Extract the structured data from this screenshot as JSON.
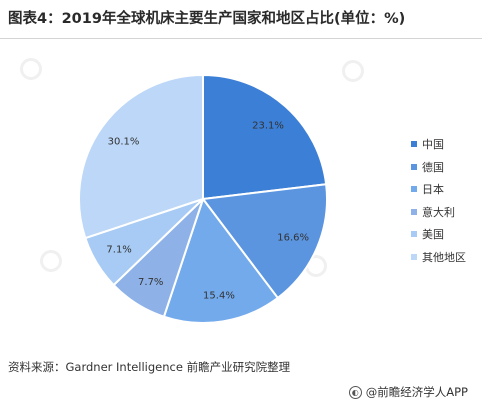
{
  "title": "图表4：2019年全球机床主要生产国家和地区占比(单位：%)",
  "source": "资料来源：Gardner Intelligence 前瞻产业研究院整理",
  "brand": "@前瞻经济学人APP",
  "watermark": "前瞻产业研究院",
  "colors": [
    "#3c7fd6",
    "#5b95e0",
    "#72aaec",
    "#8eb2e8",
    "#a7cbf4",
    "#bcd7f7"
  ],
  "chart_data": {
    "type": "pie",
    "categories": [
      "中国",
      "德国",
      "日本",
      "意大利",
      "美国",
      "其他地区"
    ],
    "values": [
      23.1,
      16.6,
      15.4,
      7.7,
      7.1,
      30.1
    ],
    "labels": [
      "23.1%",
      "16.6%",
      "15.4%",
      "7.7%",
      "7.1%",
      "30.1%"
    ],
    "legend_position": "right"
  }
}
